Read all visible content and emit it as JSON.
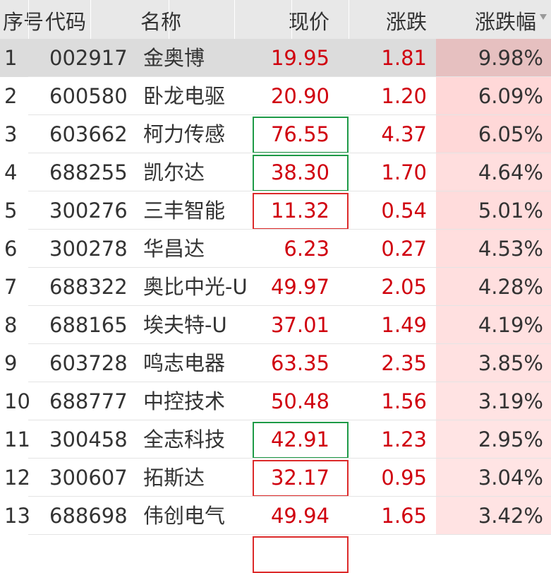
{
  "header": {
    "index": "序号",
    "code": "代码",
    "name": "名称",
    "price": "现价",
    "change": "涨跌",
    "pct": "涨跌幅",
    "sort_icon": "sort-desc-triangle"
  },
  "colors": {
    "up": "#d0000e",
    "flash_up": "#dc2a2a",
    "flash_down": "#1e9a47",
    "selected_row": "#dcdcdc"
  },
  "selected_index": 0,
  "rows": [
    {
      "idx": "1",
      "code": "002917",
      "name": "金奥博",
      "price": "19.95",
      "change": "1.81",
      "pct": "9.98%",
      "flash": ""
    },
    {
      "idx": "2",
      "code": "600580",
      "name": "卧龙电驱",
      "price": "20.90",
      "change": "1.20",
      "pct": "6.09%",
      "flash": ""
    },
    {
      "idx": "3",
      "code": "603662",
      "name": "柯力传感",
      "price": "76.55",
      "change": "4.37",
      "pct": "6.05%",
      "flash": "green"
    },
    {
      "idx": "4",
      "code": "688255",
      "name": "凯尔达",
      "price": "38.30",
      "change": "1.70",
      "pct": "4.64%",
      "flash": "green"
    },
    {
      "idx": "5",
      "code": "300276",
      "name": "三丰智能",
      "price": "11.32",
      "change": "0.54",
      "pct": "5.01%",
      "flash": "red"
    },
    {
      "idx": "6",
      "code": "300278",
      "name": "华昌达",
      "price": "6.23",
      "change": "0.27",
      "pct": "4.53%",
      "flash": ""
    },
    {
      "idx": "7",
      "code": "688322",
      "name": "奥比中光-U",
      "price": "49.97",
      "change": "2.05",
      "pct": "4.28%",
      "flash": ""
    },
    {
      "idx": "8",
      "code": "688165",
      "name": "埃夫特-U",
      "price": "37.01",
      "change": "1.49",
      "pct": "4.19%",
      "flash": ""
    },
    {
      "idx": "9",
      "code": "603728",
      "name": "鸣志电器",
      "price": "63.35",
      "change": "2.35",
      "pct": "3.85%",
      "flash": ""
    },
    {
      "idx": "10",
      "code": "688777",
      "name": "中控技术",
      "price": "50.48",
      "change": "1.56",
      "pct": "3.19%",
      "flash": ""
    },
    {
      "idx": "11",
      "code": "300458",
      "name": "全志科技",
      "price": "42.91",
      "change": "1.23",
      "pct": "2.95%",
      "flash": "green"
    },
    {
      "idx": "12",
      "code": "300607",
      "name": "拓斯达",
      "price": "32.17",
      "change": "0.95",
      "pct": "3.04%",
      "flash": "red"
    },
    {
      "idx": "13",
      "code": "688698",
      "name": "伟创电气",
      "price": "49.94",
      "change": "1.65",
      "pct": "3.42%",
      "flash": ""
    }
  ]
}
